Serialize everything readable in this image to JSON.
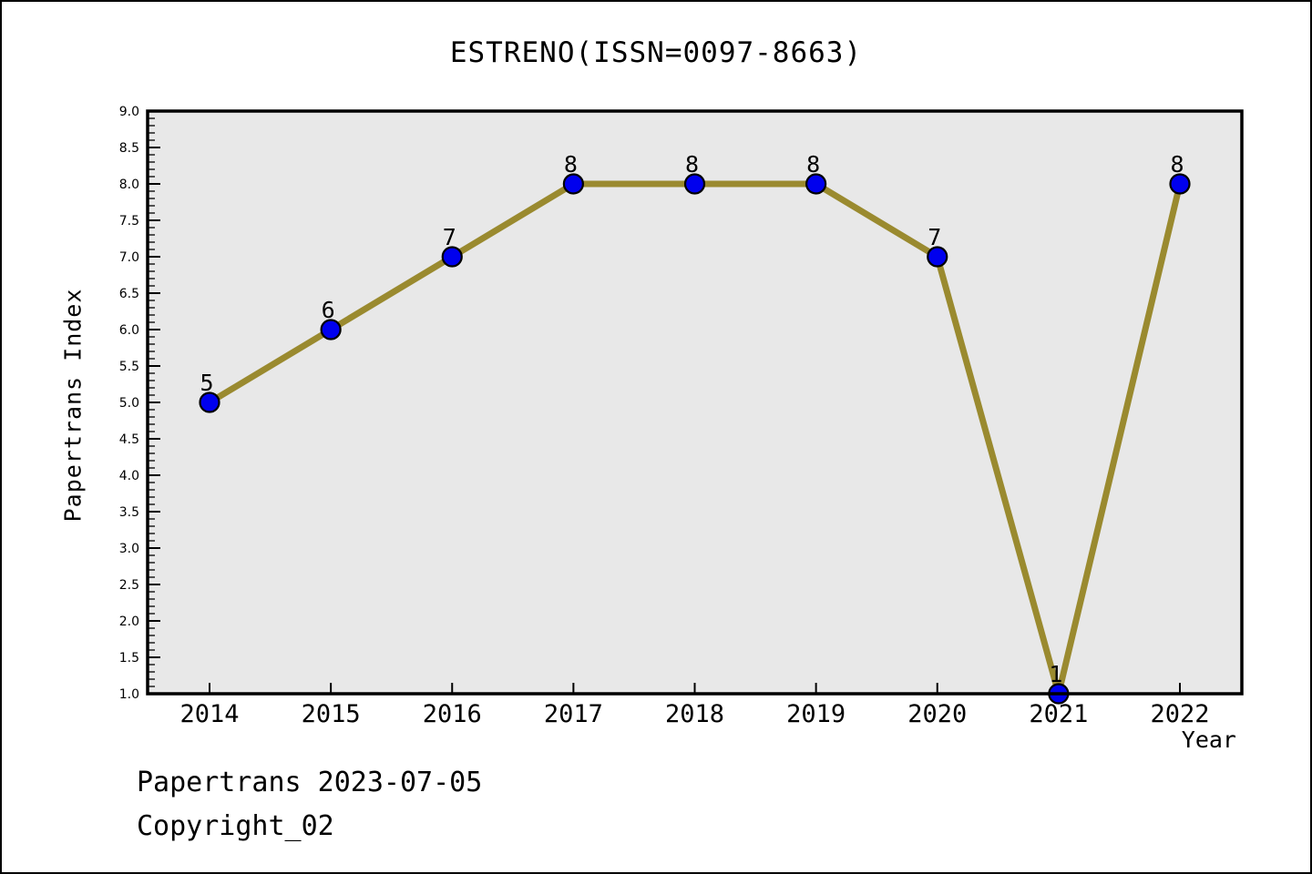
{
  "figure": {
    "footer_line1": "Papertrans 2023-07-05",
    "footer_line2": "Copyright_02"
  },
  "chart_data": {
    "type": "line",
    "title": "ESTRENO(ISSN=0097-8663)",
    "xlabel": "Year",
    "ylabel": "Papertrans Index",
    "categories": [
      "2014",
      "2015",
      "2016",
      "2017",
      "2018",
      "2019",
      "2020",
      "2021",
      "2022"
    ],
    "values": [
      5,
      6,
      7,
      8,
      8,
      8,
      7,
      1,
      8
    ],
    "point_labels": [
      "5",
      "6",
      "7",
      "8",
      "8",
      "8",
      "7",
      "1",
      "8"
    ],
    "ylim": [
      1.0,
      9.0
    ],
    "y_major_step": 0.5,
    "y_minor_step": 0.1,
    "y_tick_format_decimals": 1,
    "grid": false,
    "legend": "none",
    "colors": {
      "line": "#9a8a2f",
      "marker_fill": "#0000ee",
      "marker_edge": "#000000",
      "plot_bg": "#e8e8e8",
      "figure_bg": "#ffffff",
      "frame": "#000000",
      "text": "#000000"
    }
  }
}
